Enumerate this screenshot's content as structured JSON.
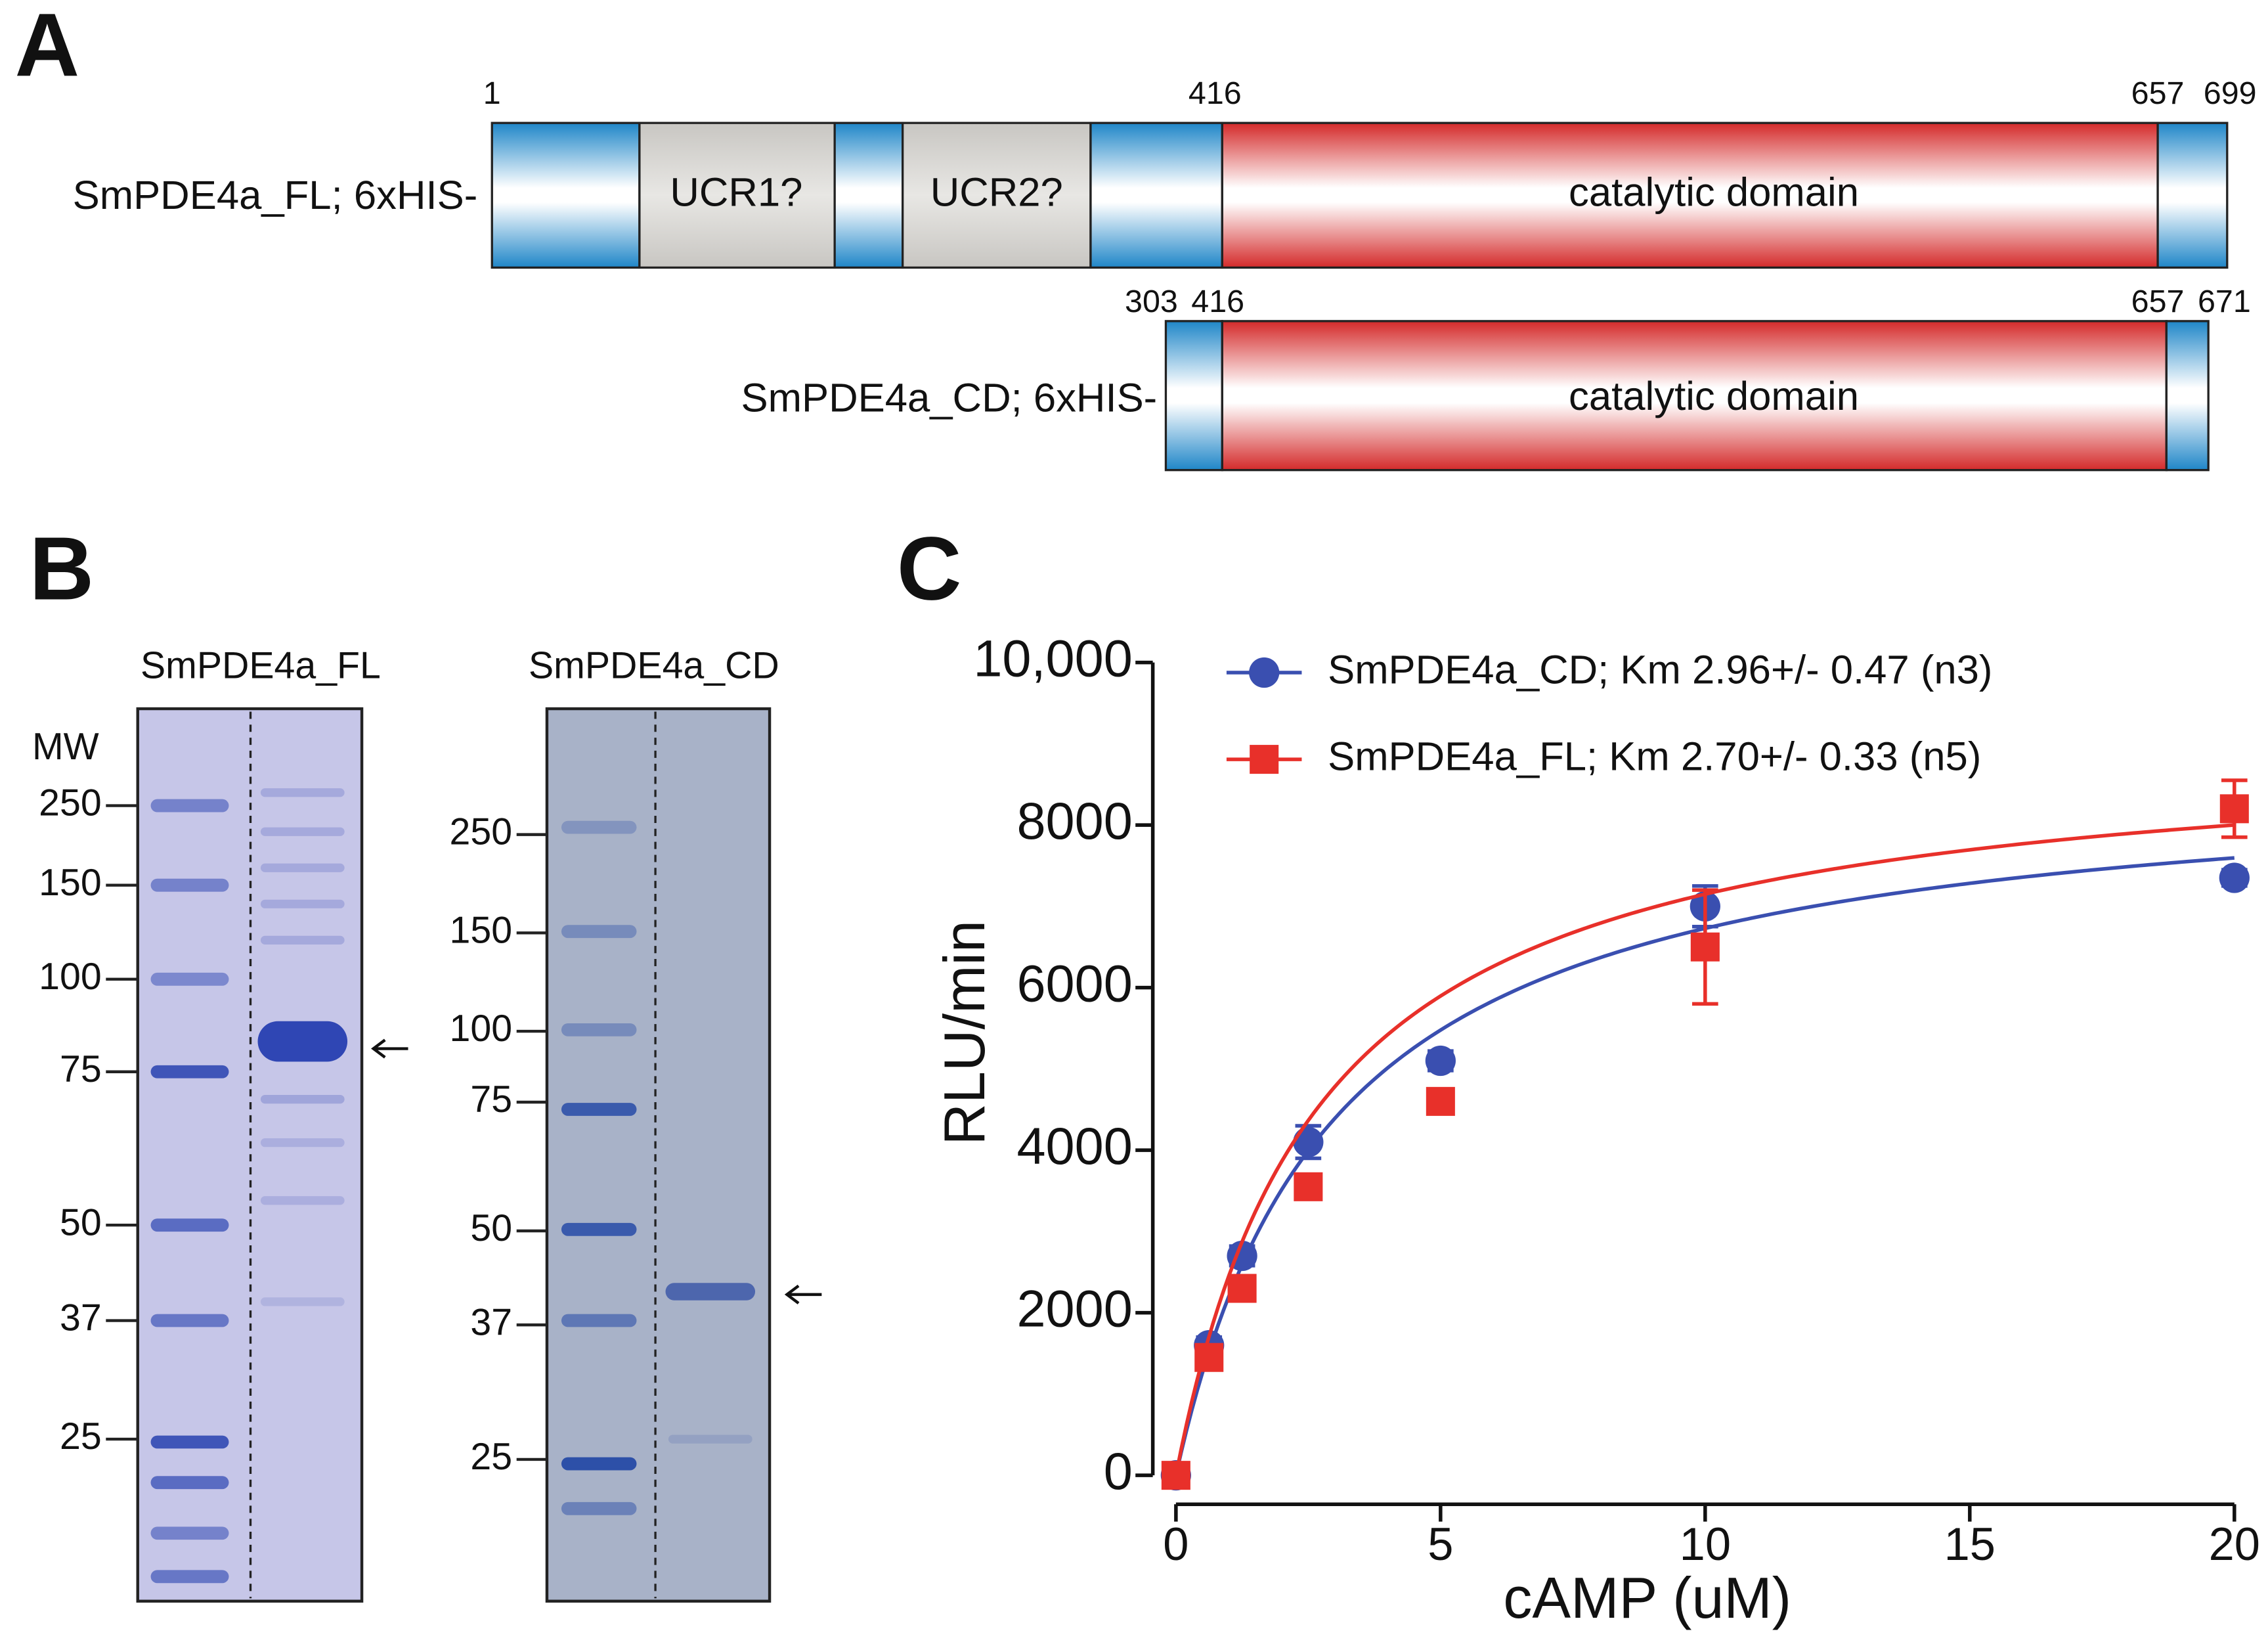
{
  "panel_a": {
    "label": "A",
    "constructs": [
      {
        "name": "SmPDE4a_FL; 6xHIS-",
        "positions": [
          "1",
          "416",
          "657",
          "699"
        ],
        "domains": [
          "UCR1?",
          "UCR2?",
          "catalytic domain"
        ]
      },
      {
        "name": "SmPDE4a_CD; 6xHIS-",
        "positions": [
          "303",
          "416",
          "657",
          "671"
        ],
        "domains": [
          "catalytic domain"
        ]
      }
    ]
  },
  "panel_b": {
    "label": "B",
    "gels": [
      {
        "title": "SmPDE4a_FL",
        "mw_label": "MW",
        "markers": [
          "250",
          "150",
          "100",
          "75",
          "50",
          "37",
          "25"
        ]
      },
      {
        "title": "SmPDE4a_CD",
        "markers": [
          "250",
          "150",
          "100",
          "75",
          "50",
          "37",
          "25"
        ]
      }
    ]
  },
  "chart_data": {
    "type": "scatter",
    "panel_label": "C",
    "x_label": "cAMP (uM)",
    "y_label": "RLU/min",
    "xlim": [
      0,
      20
    ],
    "ylim": [
      0,
      10000
    ],
    "xticks": [
      0,
      5,
      10,
      15,
      20
    ],
    "yticks": [
      0,
      2000,
      4000,
      6000,
      8000,
      {
        "value": 10000,
        "label": "10,000"
      }
    ],
    "x": [
      0,
      0.625,
      1.25,
      2.5,
      5,
      10,
      20
    ],
    "series": [
      {
        "name": "SmPDE4a_CD; Km 2.96+/- 0.47 (n3)",
        "color": "#3a4fb0",
        "marker": "circle",
        "values": [
          0,
          1600,
          2700,
          4100,
          5100,
          7000,
          7350
        ],
        "errors": [
          80,
          100,
          120,
          200,
          120,
          250,
          100
        ],
        "fit": {
          "km": 2.96,
          "vmax": 8720
        }
      },
      {
        "name": "SmPDE4a_FL; Km 2.70+/- 0.33 (n5)",
        "color": "#e8302a",
        "marker": "square",
        "values": [
          0,
          1450,
          2300,
          3550,
          4600,
          6500,
          8200
        ],
        "errors": [
          80,
          100,
          120,
          150,
          120,
          700,
          350
        ],
        "fit": {
          "km": 2.7,
          "vmax": 9080
        }
      }
    ]
  }
}
